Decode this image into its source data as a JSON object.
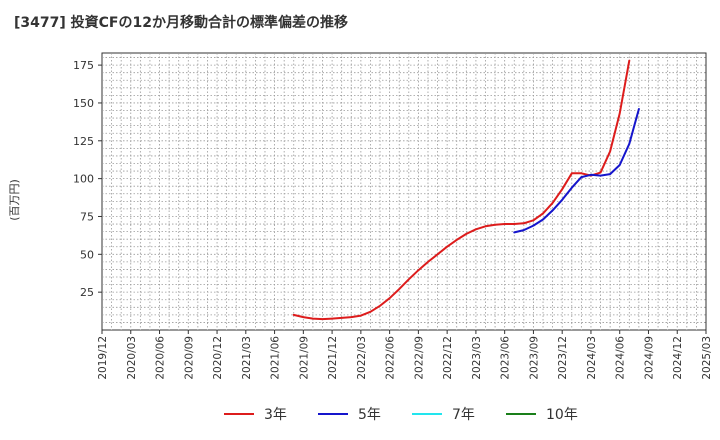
{
  "chart_data": {
    "type": "line",
    "title": "[3477]  投資CFの12か月移動合計の標準偏差の推移",
    "ylabel": "(百万円)",
    "xlabel": "",
    "ylim": [
      0,
      183
    ],
    "yticks": [
      25,
      50,
      75,
      100,
      125,
      150,
      175
    ],
    "xlim": [
      "2019-12",
      "2025-03"
    ],
    "xticks": [
      "2019/12",
      "2020/03",
      "2020/06",
      "2020/09",
      "2020/12",
      "2021/03",
      "2021/06",
      "2021/09",
      "2021/12",
      "2022/03",
      "2022/06",
      "2022/09",
      "2022/12",
      "2023/03",
      "2023/06",
      "2023/09",
      "2023/12",
      "2024/03",
      "2024/06",
      "2024/09",
      "2024/12",
      "2025/03"
    ],
    "grid": true,
    "legend_position": "bottom",
    "series": [
      {
        "name": "3年",
        "color": "#dd1c1c",
        "points": [
          [
            "2021-08",
            10
          ],
          [
            "2021-09",
            8.5
          ],
          [
            "2021-10",
            7.5
          ],
          [
            "2021-11",
            7.2
          ],
          [
            "2021-12",
            7.5
          ],
          [
            "2022-01",
            8
          ],
          [
            "2022-02",
            8.5
          ],
          [
            "2022-03",
            9.5
          ],
          [
            "2022-04",
            12
          ],
          [
            "2022-05",
            16
          ],
          [
            "2022-06",
            21
          ],
          [
            "2022-07",
            27
          ],
          [
            "2022-08",
            33.5
          ],
          [
            "2022-09",
            39.5
          ],
          [
            "2022-10",
            45
          ],
          [
            "2022-11",
            50
          ],
          [
            "2022-12",
            55
          ],
          [
            "2023-01",
            59.5
          ],
          [
            "2023-02",
            63.5
          ],
          [
            "2023-03",
            66.5
          ],
          [
            "2023-04",
            68.5
          ],
          [
            "2023-05",
            69.5
          ],
          [
            "2023-06",
            70
          ],
          [
            "2023-07",
            70
          ],
          [
            "2023-08",
            70.5
          ],
          [
            "2023-09",
            72.5
          ],
          [
            "2023-10",
            77
          ],
          [
            "2023-11",
            84
          ],
          [
            "2023-12",
            93
          ],
          [
            "2024-01",
            103.5
          ],
          [
            "2024-02",
            103.5
          ],
          [
            "2024-03",
            102
          ],
          [
            "2024-04",
            104
          ],
          [
            "2024-05",
            118
          ],
          [
            "2024-06",
            143
          ],
          [
            "2024-07",
            178
          ]
        ]
      },
      {
        "name": "5年",
        "color": "#1515cc",
        "points": [
          [
            "2023-07",
            64.5
          ],
          [
            "2023-08",
            66
          ],
          [
            "2023-09",
            69
          ],
          [
            "2023-10",
            73
          ],
          [
            "2023-11",
            79
          ],
          [
            "2023-12",
            86
          ],
          [
            "2024-01",
            94
          ],
          [
            "2024-02",
            101
          ],
          [
            "2024-03",
            102.5
          ],
          [
            "2024-04",
            102
          ],
          [
            "2024-05",
            103
          ],
          [
            "2024-06",
            109
          ],
          [
            "2024-07",
            123
          ],
          [
            "2024-08",
            146
          ]
        ]
      },
      {
        "name": "7年",
        "color": "#22e5ee",
        "points": []
      },
      {
        "name": "10年",
        "color": "#1a7f1a",
        "points": []
      }
    ]
  }
}
